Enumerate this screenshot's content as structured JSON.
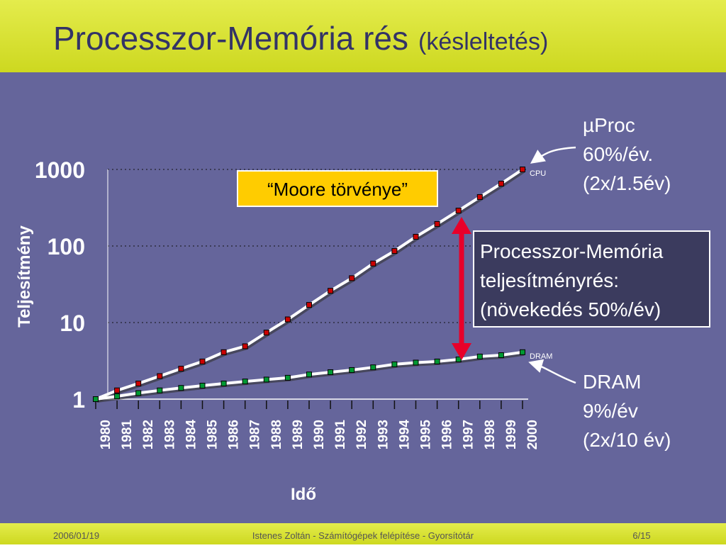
{
  "header": {
    "title": "Processzor-Memória rés",
    "subtitle": "(késleltetés)"
  },
  "chart_data": {
    "type": "line",
    "y_label": "Teljesítmény",
    "x_label": "Idő",
    "categories": [
      "1980",
      "1981",
      "1982",
      "1983",
      "1984",
      "1985",
      "1986",
      "1987",
      "1988",
      "1989",
      "1990",
      "1991",
      "1992",
      "1993",
      "1994",
      "1995",
      "1996",
      "1997",
      "1998",
      "1999",
      "2000"
    ],
    "series": [
      {
        "name": "CPU",
        "color": "#cc0000",
        "values": [
          1,
          1.3,
          1.6,
          2,
          2.5,
          3.1,
          4.1,
          4.9,
          7.4,
          11,
          17,
          26,
          38,
          59,
          86,
          132,
          194,
          290,
          436,
          653,
          1000
        ]
      },
      {
        "name": "DRAM",
        "color": "#009933",
        "values": [
          1,
          1.09,
          1.2,
          1.3,
          1.4,
          1.5,
          1.6,
          1.7,
          1.8,
          1.9,
          2.1,
          2.25,
          2.4,
          2.6,
          2.85,
          3,
          3.1,
          3.3,
          3.6,
          3.75,
          4.1
        ]
      }
    ],
    "log_scale": true,
    "ylim": [
      1,
      1000
    ],
    "yticks": [
      1,
      10,
      100,
      1000
    ],
    "grid": true,
    "annotations": {
      "cpu_note": [
        "µProc",
        "60%/év.",
        "(2x/1.5év)"
      ],
      "dram_note": [
        "DRAM",
        "9%/év",
        "(2x/10 év)"
      ],
      "moore": "“Moore törvénye”",
      "gap": [
        "Processzor-Memória",
        "teljesítményrés:",
        "(növekedés 50%/év)"
      ]
    }
  },
  "footer": {
    "date": "2006/01/19",
    "center": "Istenes Zoltán - Számítógépek felépítése - Gyorsítótár",
    "page": "6/15"
  }
}
